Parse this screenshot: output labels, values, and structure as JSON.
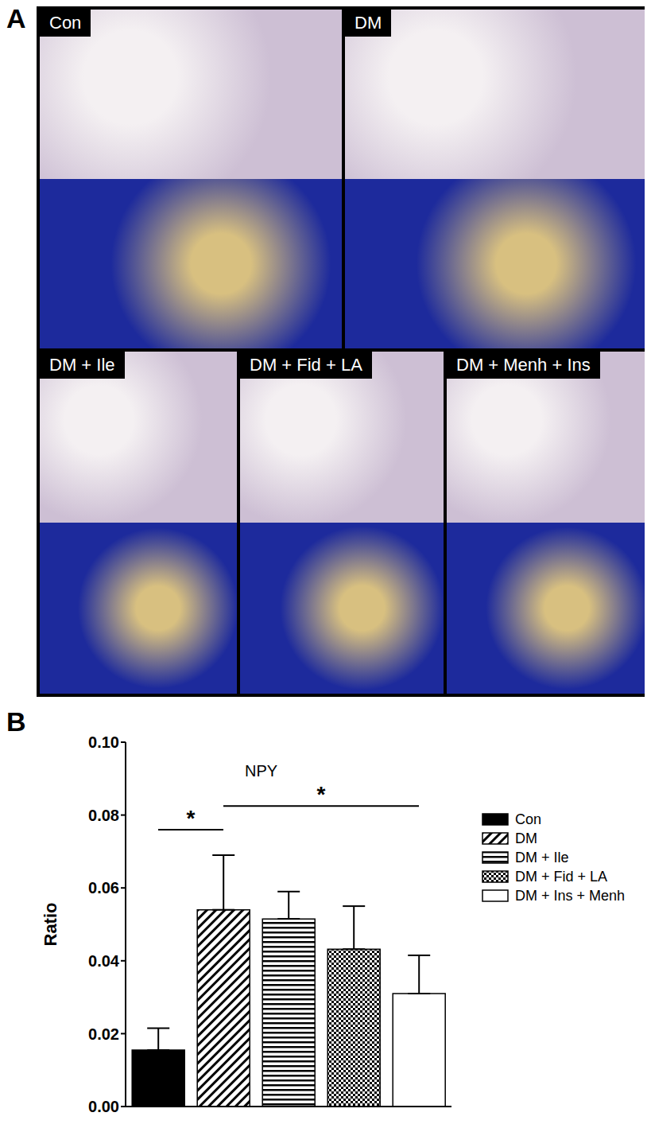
{
  "panel_a": {
    "label": "A",
    "panels": [
      "Con",
      "DM",
      "DM + Ile",
      "DM + Fid + LA",
      "DM + Menh + Ins"
    ]
  },
  "chart_data": {
    "type": "bar",
    "panel_label": "B",
    "title": "NPY",
    "y_label": "Ratio",
    "categories": [
      "Con",
      "DM",
      "DM + Ile",
      "DM + Fid + LA",
      "DM + Ins + Menh"
    ],
    "values": [
      0.0155,
      0.054,
      0.0515,
      0.0432,
      0.031
    ],
    "errors": [
      0.006,
      0.015,
      0.0075,
      0.0118,
      0.0105
    ],
    "colors": [
      "#000000",
      "#000000",
      "#000000",
      "#000000",
      "#ffffff"
    ],
    "ylim": [
      0,
      0.1
    ],
    "yticks": [
      {
        "value": 0,
        "label": "0.00"
      },
      {
        "value": 0.02,
        "label": "0.02"
      },
      {
        "value": 0.04,
        "label": "0.04"
      },
      {
        "value": 0.06,
        "label": "0.06"
      },
      {
        "value": 0.08,
        "label": "0.08"
      },
      {
        "value": 0.1,
        "label": "0.10"
      }
    ],
    "annotations": [
      {
        "from": "Con",
        "to": "DM",
        "y": 0.076,
        "text": "*"
      },
      {
        "from": "DM",
        "to": "DM + Ins + Menh",
        "y": 0.0825,
        "text": "*"
      }
    ],
    "legend": "right",
    "tick_labels": "y",
    "grid": false
  }
}
